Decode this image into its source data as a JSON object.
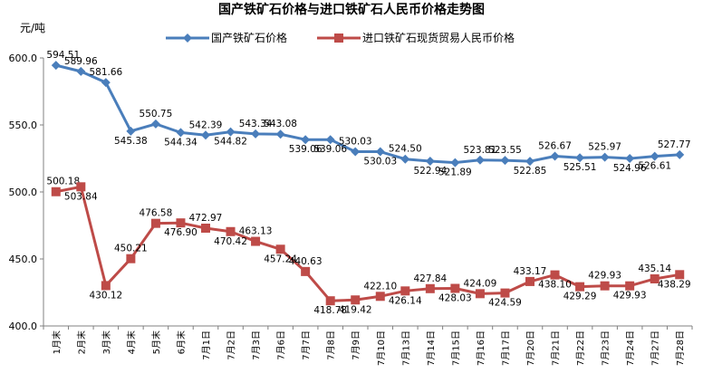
{
  "chart_data": {
    "type": "line",
    "title": "国产铁矿石价格与进口铁矿石人民币价格走势图",
    "ylabel": "元/吨",
    "ylim": [
      400,
      600
    ],
    "yticks": [
      "400.0",
      "450.0",
      "500.0",
      "550.0",
      "600.0"
    ],
    "grid": false,
    "legend": "top-center",
    "categories": [
      "1月末",
      "2月末",
      "3月末",
      "4月末",
      "5月末",
      "6月末",
      "7月1日",
      "7月2日",
      "7月3日",
      "7月6日",
      "7月7日",
      "7月8日",
      "7月9日",
      "7月10日",
      "7月13日",
      "7月14日",
      "7月15日",
      "7月16日",
      "7月17日",
      "7月20日",
      "7月21日",
      "7月22日",
      "7月23日",
      "7月24日",
      "7月27日",
      "7月28日"
    ],
    "series": [
      {
        "name": "国产铁矿石价格",
        "color": "#4a7ebb",
        "marker": "diamond",
        "values": [
          594.51,
          589.96,
          581.66,
          545.38,
          550.75,
          544.34,
          542.39,
          544.82,
          543.34,
          543.08,
          539.06,
          539.06,
          530.03,
          530.03,
          524.5,
          522.94,
          521.89,
          523.81,
          523.55,
          522.85,
          526.67,
          525.51,
          525.97,
          524.96,
          526.61,
          527.77
        ],
        "labels": [
          "594.51",
          "589.96",
          "581.66",
          "545.38",
          "550.75",
          "544.34",
          "542.39",
          "544.82",
          "543.34",
          "543.08",
          "539.06",
          "539.06",
          "530.03",
          "530.03",
          "524.50",
          "522.94",
          "521.89",
          "523.81",
          "523.55",
          "522.85",
          "526.67",
          "525.51",
          "525.97",
          "524.96",
          "526.61",
          "527.77"
        ]
      },
      {
        "name": "进口铁矿石现货贸易人民币价格",
        "color": "#be4b48",
        "marker": "square",
        "values": [
          500.18,
          503.84,
          430.12,
          450.21,
          476.58,
          476.9,
          472.97,
          470.42,
          463.13,
          457.24,
          440.63,
          418.78,
          419.42,
          422.1,
          426.14,
          427.84,
          428.03,
          424.09,
          424.59,
          433.17,
          438.1,
          429.29,
          429.93,
          429.93,
          435.14,
          438.29
        ],
        "labels": [
          "500.18",
          "503.84",
          "430.12",
          "450.21",
          "476.58",
          "476.90",
          "472.97",
          "470.42",
          "463.13",
          "457.24",
          "440.63",
          "418.78",
          "419.42",
          "422.10",
          "426.14",
          "427.84",
          "428.03",
          "424.09",
          "424.59",
          "433.17",
          "438.10",
          "429.29",
          "429.93",
          "429.93",
          "435.14",
          "438.29"
        ]
      }
    ]
  }
}
